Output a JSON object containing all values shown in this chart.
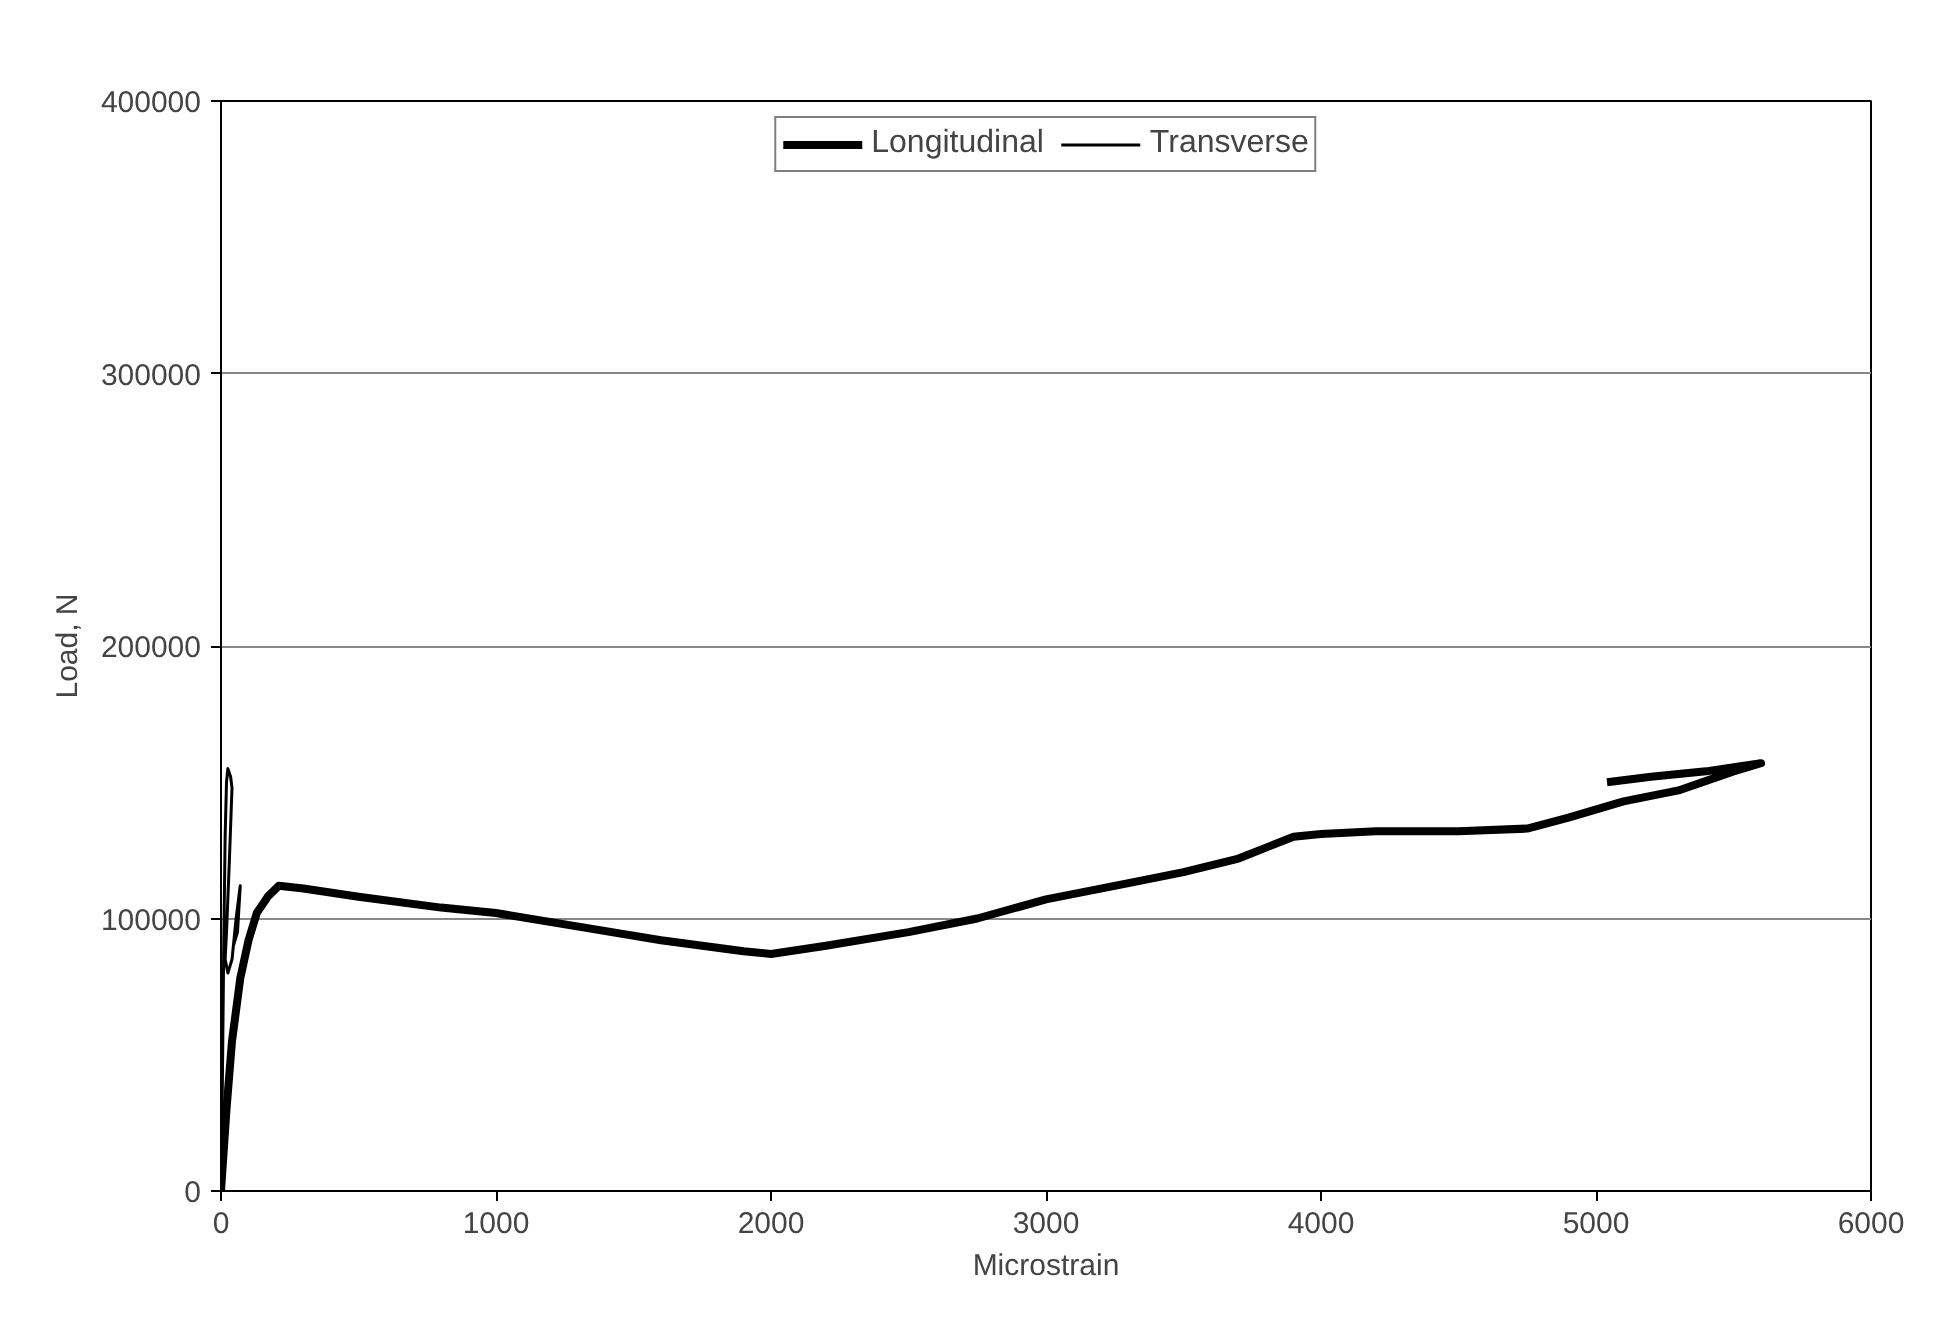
{
  "chart_data": {
    "type": "line",
    "xlabel": "Microstrain",
    "ylabel": "Load, N",
    "xlim": [
      0,
      6000
    ],
    "ylim": [
      0,
      400000
    ],
    "xticks": [
      0,
      1000,
      2000,
      3000,
      4000,
      5000,
      6000
    ],
    "yticks": [
      0,
      100000,
      200000,
      300000,
      400000
    ],
    "grid": "y",
    "legend": "top",
    "line_style": "solid",
    "marker": "none",
    "series": [
      {
        "name": "Longitudinal",
        "color": "#000000",
        "x": [
          0,
          20,
          40,
          70,
          100,
          130,
          170,
          210,
          300,
          500,
          800,
          1000,
          1300,
          1600,
          1900,
          2000,
          2200,
          2500,
          2750,
          3000,
          3300,
          3500,
          3700,
          3800,
          3900,
          4000,
          4200,
          4500,
          4750,
          4900,
          5100,
          5300,
          5500,
          5600,
          5400,
          5200,
          5040
        ],
        "values": [
          0,
          30000,
          55000,
          78000,
          92000,
          102000,
          108000,
          112000,
          111000,
          108000,
          104000,
          102000,
          97000,
          92000,
          88000,
          87000,
          90000,
          95000,
          100000,
          107000,
          113000,
          117000,
          122000,
          126000,
          130000,
          131000,
          132000,
          132000,
          133000,
          137000,
          143000,
          147000,
          154000,
          157000,
          154000,
          152000,
          150000
        ]
      },
      {
        "name": "Transverse",
        "color": "#000000",
        "x": [
          0,
          5,
          10,
          15,
          20,
          25,
          35,
          40,
          30,
          20,
          15,
          25,
          40,
          55,
          70,
          60,
          45
        ],
        "values": [
          0,
          40000,
          90000,
          130000,
          150000,
          155000,
          152000,
          148000,
          120000,
          95000,
          85000,
          80000,
          85000,
          100000,
          112000,
          95000,
          90000
        ]
      }
    ]
  }
}
